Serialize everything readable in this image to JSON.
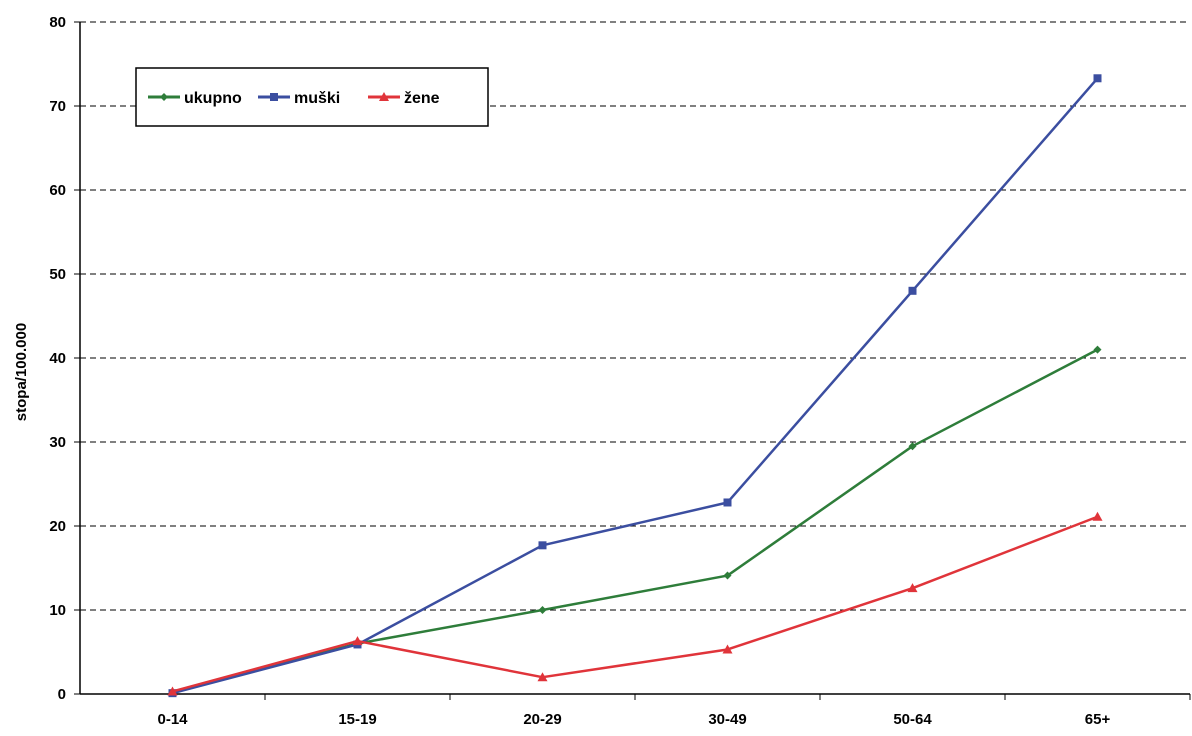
{
  "chart_data": {
    "type": "line",
    "title": "",
    "xlabel": "",
    "ylabel": "stopa/100.000",
    "categories": [
      "0-14",
      "15-19",
      "20-29",
      "30-49",
      "50-64",
      "65+"
    ],
    "ylim": [
      0,
      80
    ],
    "yticks": [
      "0",
      "10",
      "20",
      "30",
      "40",
      "50",
      "60",
      "70",
      "80"
    ],
    "grid": "horizontal dashed",
    "legend_position": "top-left",
    "series": [
      {
        "name": "ukupno",
        "color": "#2e7d3a",
        "marker": "diamond",
        "values": [
          0.2,
          6.0,
          10.0,
          14.1,
          29.5,
          41.0
        ]
      },
      {
        "name": "muški",
        "color": "#3b4ea0",
        "marker": "square",
        "values": [
          0.1,
          5.9,
          17.7,
          22.8,
          48.0,
          73.3
        ]
      },
      {
        "name": "žene",
        "color": "#e0343a",
        "marker": "triangle",
        "values": [
          0.3,
          6.3,
          2.0,
          5.3,
          12.6,
          21.1
        ]
      }
    ]
  }
}
